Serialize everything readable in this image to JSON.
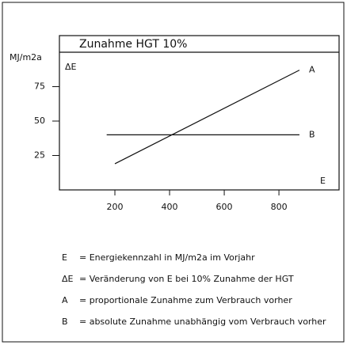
{
  "chart_data": {
    "type": "line",
    "title": "Zunahme  HGT   10%",
    "ylabel_unit": "MJ/m2a",
    "ylabel": "ΔE",
    "xlabel": "E",
    "xlim": [
      0,
      1020
    ],
    "xticks": [
      200,
      400,
      600,
      800
    ],
    "ylim": [
      0,
      100
    ],
    "yticks": [
      25,
      50,
      75
    ],
    "grid": false,
    "series": [
      {
        "name": "A",
        "color": "#000000",
        "x": [
          200,
          875
        ],
        "values": [
          19,
          87
        ]
      },
      {
        "name": "B",
        "color": "#000000",
        "x": [
          170,
          875
        ],
        "values": [
          40,
          40
        ]
      }
    ]
  },
  "notes": [
    {
      "key": "E",
      "text": "= Energiekennzahl in MJ/m2a im Vorjahr"
    },
    {
      "key": "ΔE",
      "text": "= Veränderung von E bei 10% Zunahme der HGT"
    },
    {
      "key": "A",
      "text": "= proportionale Zunahme zum Verbrauch vorher"
    },
    {
      "key": "B",
      "text": "= absolute Zunahme unabhängig vom Verbrauch vorher"
    }
  ]
}
